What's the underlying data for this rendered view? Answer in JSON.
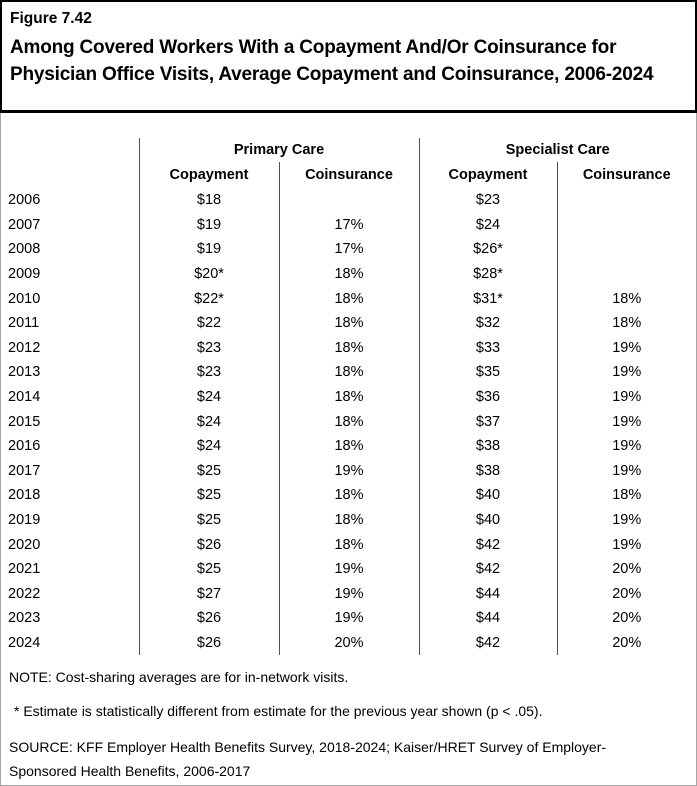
{
  "header": {
    "figure_label": "Figure 7.42",
    "title": "Among Covered Workers With a Copayment And/Or Coinsurance for Physician Office Visits, Average Copayment and Coinsurance, 2006-2024"
  },
  "table": {
    "group_headers": {
      "primary": "Primary Care",
      "specialist": "Specialist Care"
    },
    "column_headers": [
      "Copayment",
      "Coinsurance",
      "Copayment",
      "Coinsurance"
    ],
    "rows": [
      {
        "year": "2006",
        "pc_copay": "$18",
        "pc_coins": "",
        "sc_copay": "$23",
        "sc_coins": ""
      },
      {
        "year": "2007",
        "pc_copay": "$19",
        "pc_coins": "17%",
        "sc_copay": "$24",
        "sc_coins": ""
      },
      {
        "year": "2008",
        "pc_copay": "$19",
        "pc_coins": "17%",
        "sc_copay": "$26*",
        "sc_coins": ""
      },
      {
        "year": "2009",
        "pc_copay": "$20*",
        "pc_coins": "18%",
        "sc_copay": "$28*",
        "sc_coins": ""
      },
      {
        "year": "2010",
        "pc_copay": "$22*",
        "pc_coins": "18%",
        "sc_copay": "$31*",
        "sc_coins": "18%"
      },
      {
        "year": "2011",
        "pc_copay": "$22",
        "pc_coins": "18%",
        "sc_copay": "$32",
        "sc_coins": "18%"
      },
      {
        "year": "2012",
        "pc_copay": "$23",
        "pc_coins": "18%",
        "sc_copay": "$33",
        "sc_coins": "19%"
      },
      {
        "year": "2013",
        "pc_copay": "$23",
        "pc_coins": "18%",
        "sc_copay": "$35",
        "sc_coins": "19%"
      },
      {
        "year": "2014",
        "pc_copay": "$24",
        "pc_coins": "18%",
        "sc_copay": "$36",
        "sc_coins": "19%"
      },
      {
        "year": "2015",
        "pc_copay": "$24",
        "pc_coins": "18%",
        "sc_copay": "$37",
        "sc_coins": "19%"
      },
      {
        "year": "2016",
        "pc_copay": "$24",
        "pc_coins": "18%",
        "sc_copay": "$38",
        "sc_coins": "19%"
      },
      {
        "year": "2017",
        "pc_copay": "$25",
        "pc_coins": "19%",
        "sc_copay": "$38",
        "sc_coins": "19%"
      },
      {
        "year": "2018",
        "pc_copay": "$25",
        "pc_coins": "18%",
        "sc_copay": "$40",
        "sc_coins": "18%"
      },
      {
        "year": "2019",
        "pc_copay": "$25",
        "pc_coins": "18%",
        "sc_copay": "$40",
        "sc_coins": "19%"
      },
      {
        "year": "2020",
        "pc_copay": "$26",
        "pc_coins": "18%",
        "sc_copay": "$42",
        "sc_coins": "19%"
      },
      {
        "year": "2021",
        "pc_copay": "$25",
        "pc_coins": "19%",
        "sc_copay": "$42",
        "sc_coins": "20%"
      },
      {
        "year": "2022",
        "pc_copay": "$27",
        "pc_coins": "19%",
        "sc_copay": "$44",
        "sc_coins": "20%"
      },
      {
        "year": "2023",
        "pc_copay": "$26",
        "pc_coins": "19%",
        "sc_copay": "$44",
        "sc_coins": "20%"
      },
      {
        "year": "2024",
        "pc_copay": "$26",
        "pc_coins": "20%",
        "sc_copay": "$42",
        "sc_coins": "20%"
      }
    ]
  },
  "notes": {
    "note": "NOTE: Cost-sharing averages are for in-network visits.",
    "asterisk_note": "* Estimate is statistically different from estimate for the previous year shown (p < .05).",
    "source": "SOURCE: KFF Employer Health Benefits Survey, 2018-2024; Kaiser/HRET Survey of Employer-Sponsored Health Benefits, 2006-2017"
  },
  "colors": {
    "text": "#000000",
    "title_border": "#000000",
    "content_border": "#a6a6a6",
    "table_divider": "#4f4f4f"
  },
  "chart_data": {
    "type": "table",
    "title": "Among Covered Workers With a Copayment And/Or Coinsurance for Physician Office Visits, Average Copayment and Coinsurance, 2006-2024",
    "categories": [
      "2006",
      "2007",
      "2008",
      "2009",
      "2010",
      "2011",
      "2012",
      "2013",
      "2014",
      "2015",
      "2016",
      "2017",
      "2018",
      "2019",
      "2020",
      "2021",
      "2022",
      "2023",
      "2024"
    ],
    "series": [
      {
        "name": "Primary Care Copayment",
        "values": [
          "$18",
          "$19",
          "$19",
          "$20*",
          "$22*",
          "$22",
          "$23",
          "$23",
          "$24",
          "$24",
          "$24",
          "$25",
          "$25",
          "$25",
          "$26",
          "$25",
          "$27",
          "$26",
          "$26"
        ]
      },
      {
        "name": "Primary Care Coinsurance",
        "values": [
          "",
          "17%",
          "17%",
          "18%",
          "18%",
          "18%",
          "18%",
          "18%",
          "18%",
          "18%",
          "18%",
          "19%",
          "18%",
          "18%",
          "18%",
          "19%",
          "19%",
          "19%",
          "20%"
        ]
      },
      {
        "name": "Specialist Care Copayment",
        "values": [
          "$23",
          "$24",
          "$26*",
          "$28*",
          "$31*",
          "$32",
          "$33",
          "$35",
          "$36",
          "$37",
          "$38",
          "$38",
          "$40",
          "$40",
          "$42",
          "$42",
          "$44",
          "$44",
          "$42"
        ]
      },
      {
        "name": "Specialist Care Coinsurance",
        "values": [
          "",
          "",
          "",
          "",
          "18%",
          "18%",
          "19%",
          "19%",
          "19%",
          "19%",
          "19%",
          "19%",
          "18%",
          "19%",
          "19%",
          "20%",
          "20%",
          "20%",
          "20%"
        ]
      }
    ]
  }
}
